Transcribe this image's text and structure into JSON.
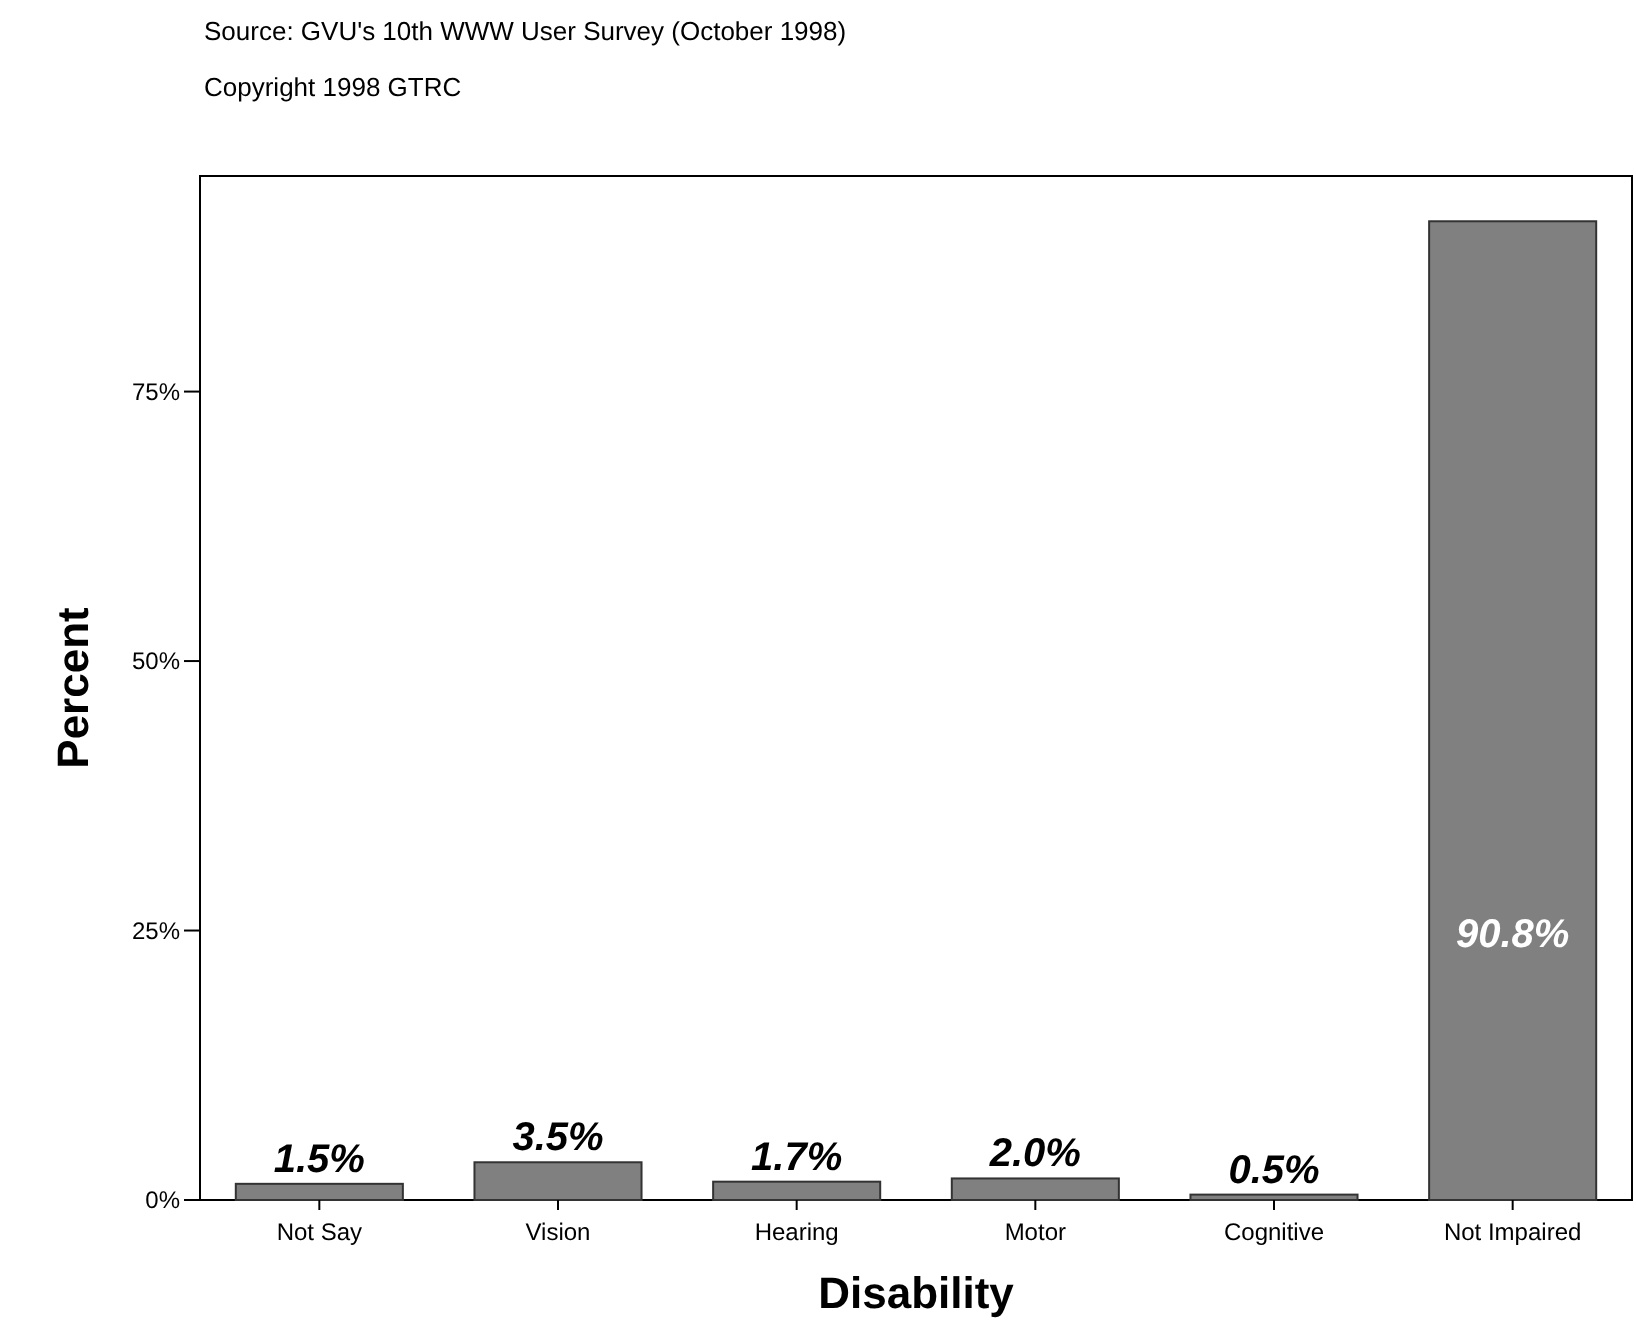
{
  "chart_data": {
    "type": "bar",
    "xlabel": "Disability",
    "ylabel": "Percent",
    "annotations": [
      "Source: GVU's 10th WWW User Survey (October 1998)",
      "Copyright 1998 GTRC"
    ],
    "categories": [
      "Not Say",
      "Vision",
      "Hearing",
      "Motor",
      "Cognitive",
      "Not Impaired"
    ],
    "values": [
      1.5,
      3.5,
      1.7,
      2.0,
      0.5,
      90.8
    ],
    "value_labels": [
      "1.5%",
      "3.5%",
      "1.7%",
      "2.0%",
      "0.5%",
      "90.8%"
    ],
    "color": "#808080",
    "ylim": [
      0,
      95
    ],
    "yticks": [
      {
        "value": 0,
        "label": "0%"
      },
      {
        "value": 25,
        "label": "25%"
      },
      {
        "value": 50,
        "label": "50%"
      },
      {
        "value": 75,
        "label": "75%"
      }
    ],
    "grid": false
  }
}
